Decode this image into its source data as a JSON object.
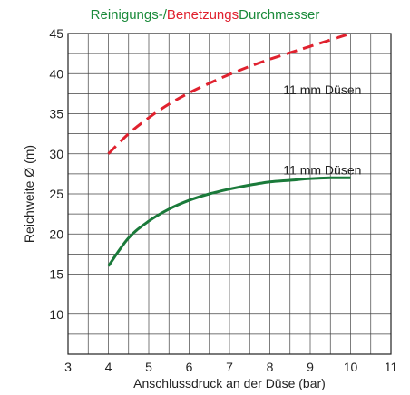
{
  "chart_data": {
    "type": "line",
    "title_parts": [
      {
        "text": "Reinigungs-/",
        "color": "#1a8a3a"
      },
      {
        "text": "Benetzungs",
        "color": "#e0212e"
      },
      {
        "text": "Durchmesser",
        "color": "#1a8a3a"
      }
    ],
    "xlabel": "Anschlussdruck an der Düse (bar)",
    "ylabel": "Reichweite Ø (m)",
    "xlim": [
      3,
      11
    ],
    "ylim": [
      5,
      45
    ],
    "x_ticks": [
      3,
      4,
      5,
      6,
      7,
      8,
      9,
      10,
      11
    ],
    "y_ticks": [
      10,
      15,
      20,
      25,
      30,
      35,
      40,
      45
    ],
    "grid": true,
    "series": [
      {
        "name": "",
        "color": "#e0212e",
        "style": "dashed",
        "x": [
          4,
          4.5,
          5,
          5.5,
          6,
          6.5,
          7,
          7.5,
          8,
          8.5,
          9,
          9.5,
          10
        ],
        "y": [
          30,
          32.5,
          34.5,
          36.2,
          37.6,
          38.8,
          39.9,
          40.9,
          41.8,
          42.6,
          43.4,
          44.2,
          45
        ]
      },
      {
        "name": "",
        "color": "#1a7a3a",
        "style": "solid",
        "x": [
          4,
          4.5,
          5,
          5.5,
          6,
          6.5,
          7,
          7.5,
          8,
          8.5,
          9,
          9.5,
          10
        ],
        "y": [
          16,
          19.5,
          21.6,
          23.1,
          24.2,
          25,
          25.6,
          26.1,
          26.5,
          26.7,
          26.9,
          27,
          27
        ]
      }
    ],
    "annotations": [
      {
        "text": "11 mm Düsen",
        "x": 9.3,
        "y": 38
      },
      {
        "text": "11 mm Düsen",
        "x": 9.3,
        "y": 28
      }
    ]
  }
}
